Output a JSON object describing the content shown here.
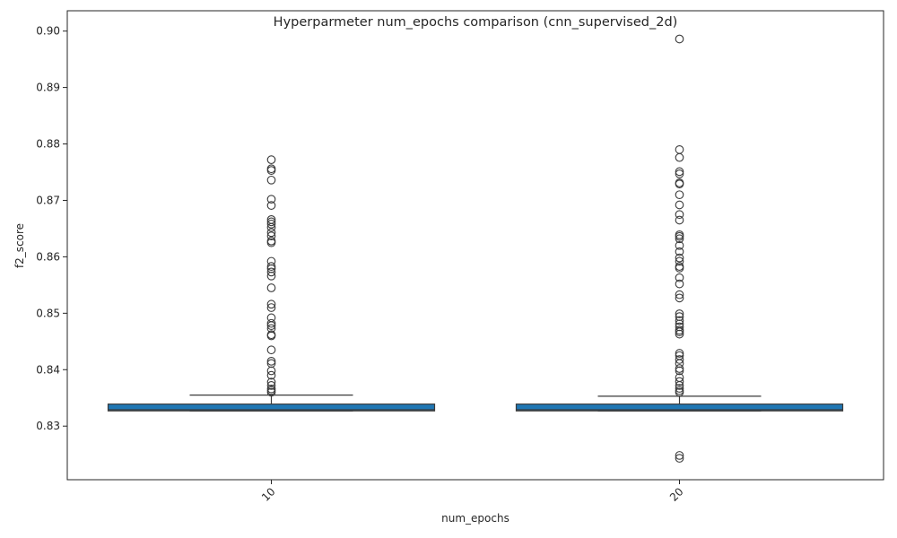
{
  "chart_data": {
    "type": "box",
    "title": "Hyperparmeter num_epochs comparison (cnn_supervised_2d)",
    "xlabel": "num_epochs",
    "ylabel": "f2_score",
    "ylim": [
      0.8205,
      0.9036
    ],
    "yticks": [
      0.83,
      0.84,
      0.85,
      0.86,
      0.87,
      0.88,
      0.89,
      0.9
    ],
    "ytick_labels": [
      "0.83",
      "0.84",
      "0.85",
      "0.86",
      "0.87",
      "0.88",
      "0.89",
      "0.90"
    ],
    "x_tick_rotation": 45,
    "grid": false,
    "box_color": "#1f77b4",
    "edge_color": "#3a3a3a",
    "categories": [
      "10",
      "20"
    ],
    "groups": [
      {
        "category": "10",
        "q1": 0.8327,
        "median": 0.8329,
        "q3": 0.8339,
        "whisker_low": 0.8327,
        "whisker_high": 0.8355,
        "outliers": [
          0.836,
          0.8363,
          0.8366,
          0.8372,
          0.8378,
          0.839,
          0.8398,
          0.8411,
          0.8415,
          0.8435,
          0.846,
          0.8462,
          0.8473,
          0.8478,
          0.8482,
          0.8492,
          0.851,
          0.8516,
          0.8545,
          0.8566,
          0.8573,
          0.8579,
          0.8583,
          0.8592,
          0.8625,
          0.8628,
          0.8637,
          0.8643,
          0.8652,
          0.8658,
          0.8662,
          0.8666,
          0.8691,
          0.8702,
          0.8736,
          0.8753,
          0.8756,
          0.8772
        ]
      },
      {
        "category": "20",
        "q1": 0.8327,
        "median": 0.8329,
        "q3": 0.8339,
        "whisker_low": 0.8327,
        "whisker_high": 0.8353,
        "outliers": [
          0.8243,
          0.8248,
          0.836,
          0.8363,
          0.8367,
          0.8372,
          0.8379,
          0.8386,
          0.8398,
          0.8402,
          0.8411,
          0.8418,
          0.8425,
          0.8429,
          0.8463,
          0.8467,
          0.847,
          0.8476,
          0.8481,
          0.8487,
          0.8494,
          0.8499,
          0.8527,
          0.8533,
          0.8552,
          0.8563,
          0.858,
          0.8583,
          0.8592,
          0.8598,
          0.8609,
          0.862,
          0.8632,
          0.8636,
          0.8639,
          0.8665,
          0.8675,
          0.8692,
          0.871,
          0.8729,
          0.8731,
          0.8747,
          0.8751,
          0.8776,
          0.879,
          0.8986
        ]
      }
    ]
  }
}
